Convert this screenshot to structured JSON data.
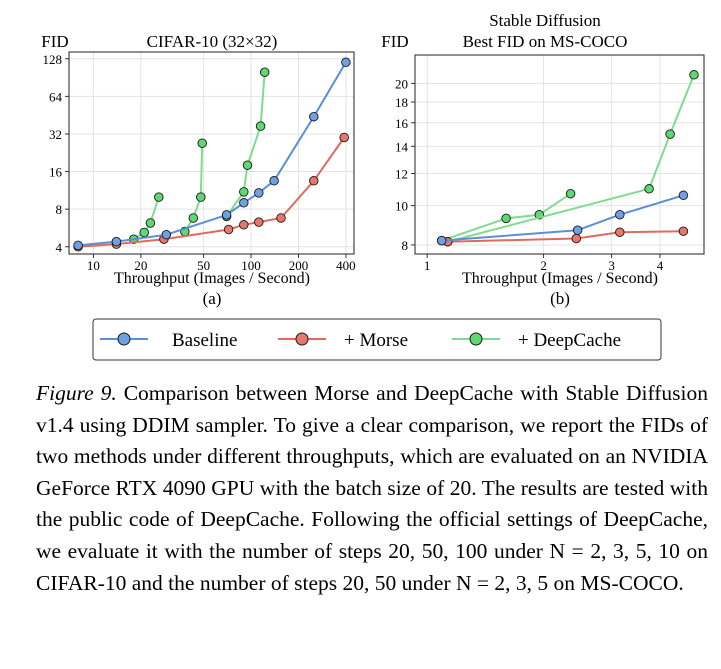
{
  "chart_data": [
    {
      "type": "line",
      "title": "CIFAR-10 (32×32)",
      "ylabel": "FID",
      "xlabel": "Throughput (Images / Second)",
      "sublabel": "(a)",
      "xscale": "log",
      "yscale": "log",
      "xlim": [
        7,
        450
      ],
      "ylim": [
        3.5,
        145
      ],
      "xticks": [
        10,
        20,
        50,
        100,
        200,
        400
      ],
      "xtick_labels": [
        "10",
        "20",
        "50",
        "100",
        "200",
        "400"
      ],
      "yticks": [
        4,
        8,
        16,
        32,
        64,
        128
      ],
      "ytick_labels": [
        "4",
        "8",
        "16",
        "32",
        "64",
        "128"
      ],
      "grid": true,
      "series": [
        {
          "key": "baseline",
          "color": "#5b8fd8",
          "fill": "#6fa0e0",
          "points": [
            [
              8,
              4.1
            ],
            [
              14,
              4.4
            ],
            [
              29,
              5.0
            ],
            [
              70,
              7.2
            ],
            [
              90,
              9.0
            ],
            [
              112,
              10.8
            ],
            [
              140,
              13.5
            ],
            [
              250,
              44
            ],
            [
              400,
              120
            ]
          ]
        },
        {
          "key": "morse",
          "color": "#de6b5e",
          "fill": "#e8776b",
          "points": [
            [
              8,
              4.0
            ],
            [
              14,
              4.2
            ],
            [
              28,
              4.6
            ],
            [
              72,
              5.5
            ],
            [
              90,
              6.0
            ],
            [
              112,
              6.3
            ],
            [
              155,
              6.8
            ],
            [
              250,
              13.5
            ],
            [
              390,
              30
            ]
          ]
        },
        {
          "key": "deepcache_20",
          "color": "#7fdc8f",
          "fill": "#5ed870",
          "points": [
            [
              18,
              4.6
            ],
            [
              21,
              5.2
            ],
            [
              23,
              6.2
            ],
            [
              26,
              10.0
            ]
          ]
        },
        {
          "key": "deepcache_50",
          "color": "#7fdc8f",
          "fill": "#5ed870",
          "points": [
            [
              38,
              5.3
            ],
            [
              43,
              6.8
            ],
            [
              48,
              10.0
            ],
            [
              49,
              27
            ]
          ]
        },
        {
          "key": "deepcache_100",
          "color": "#7fdc8f",
          "fill": "#5ed870",
          "points": [
            [
              70,
              7.0
            ],
            [
              90,
              11.0
            ],
            [
              95,
              18
            ],
            [
              115,
              37
            ],
            [
              122,
              100
            ]
          ]
        }
      ]
    },
    {
      "type": "line",
      "title_lines": [
        "Stable Diffusion",
        "Best FID on MS-COCO"
      ],
      "ylabel": "FID",
      "xlabel": "Throughput (Images / Second)",
      "sublabel": "(b)",
      "xscale": "log",
      "yscale": "log",
      "xlim": [
        0.93,
        5.2
      ],
      "ylim": [
        7.6,
        23.5
      ],
      "xticks": [
        1,
        2,
        3,
        4
      ],
      "xtick_labels": [
        "1",
        "2",
        "3",
        "4"
      ],
      "yticks": [
        8,
        10,
        12,
        14,
        16,
        18,
        20
      ],
      "ytick_labels": [
        "8",
        "10",
        "12",
        "14",
        "16",
        "18",
        "20"
      ],
      "grid": true,
      "series": [
        {
          "key": "baseline",
          "color": "#5b8fd8",
          "fill": "#6fa0e0",
          "points": [
            [
              1.09,
              8.2
            ],
            [
              2.45,
              8.7
            ],
            [
              3.15,
              9.5
            ],
            [
              4.6,
              10.6
            ]
          ]
        },
        {
          "key": "morse",
          "color": "#de6b5e",
          "fill": "#e8776b",
          "points": [
            [
              1.13,
              8.15
            ],
            [
              2.43,
              8.3
            ],
            [
              3.15,
              8.6
            ],
            [
              4.6,
              8.65
            ]
          ]
        },
        {
          "key": "deepcache_20",
          "color": "#7fdc8f",
          "fill": "#5ed870",
          "points": [
            [
              1.09,
              8.2
            ],
            [
              1.6,
              9.3
            ],
            [
              1.95,
              9.5
            ],
            [
              2.35,
              10.7
            ]
          ]
        },
        {
          "key": "deepcache_50",
          "color": "#7fdc8f",
          "fill": "#5ed870",
          "points": [
            [
              1.13,
              8.15
            ],
            [
              3.75,
              11.0
            ],
            [
              4.25,
              15.0
            ],
            [
              4.9,
              21.0
            ]
          ]
        }
      ]
    }
  ],
  "legend": {
    "placement": "bottom-center",
    "entries": [
      {
        "label": "Baseline",
        "color": "#5b8fd8",
        "fill": "#6fa0e0"
      },
      {
        "label": "+ Morse",
        "color": "#de6b5e",
        "fill": "#e8776b"
      },
      {
        "label": "+ DeepCache",
        "color": "#7fdc8f",
        "fill": "#5ed870"
      }
    ]
  },
  "caption": {
    "label": "Figure 9.",
    "text": " Comparison between Morse and DeepCache with Stable Diffusion v1.4 using DDIM sampler. To give a clear comparison, we report the FIDs of two methods under different throughputs, which are evaluated on an NVIDIA GeForce RTX 4090 GPU with the batch size of 20. The results are tested with the public code of DeepCache. Following the official settings of DeepCache, we evaluate it with the number of steps 20, 50, 100 under N = 2, 3, 5, 10 on CIFAR-10 and the number of steps 20, 50 under N = 2, 3, 5 on MS-COCO."
  }
}
